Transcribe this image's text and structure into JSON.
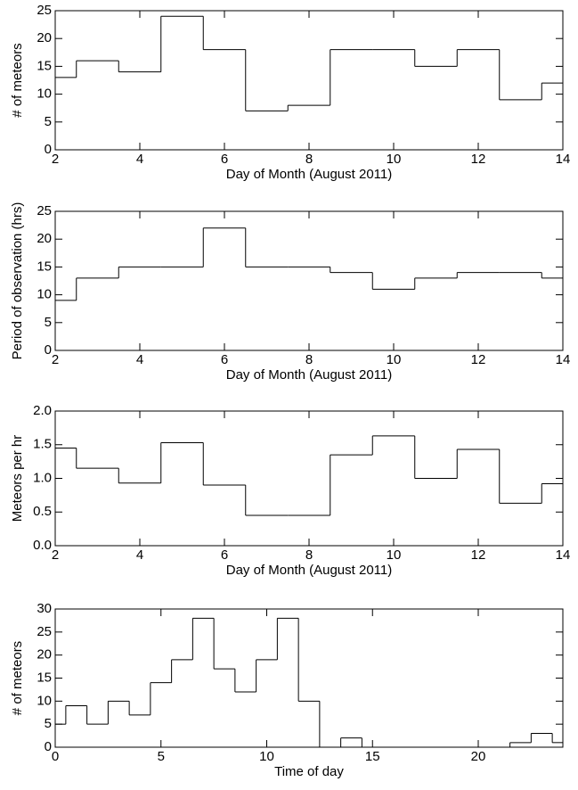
{
  "chart_data": [
    {
      "type": "step",
      "xlabel": "Day of Month (August 2011)",
      "ylabel": "# of meteors",
      "x": [
        2,
        3,
        4,
        5,
        6,
        7,
        8,
        9,
        10,
        11,
        12,
        13,
        14
      ],
      "values": [
        13,
        16,
        14,
        24,
        18,
        7,
        8,
        18,
        18,
        15,
        18,
        9,
        12
      ],
      "xlim": [
        2,
        14
      ],
      "ylim": [
        0,
        25
      ],
      "xticks": [
        2,
        4,
        6,
        8,
        10,
        12,
        14
      ],
      "yticks": [
        0,
        5,
        10,
        15,
        20,
        25
      ],
      "color": "#000000"
    },
    {
      "type": "step",
      "xlabel": "Day of Month (August 2011)",
      "ylabel": "Period of observation (hrs)",
      "x": [
        2,
        3,
        4,
        5,
        6,
        7,
        8,
        9,
        10,
        11,
        12,
        13,
        14
      ],
      "values": [
        9,
        13,
        15,
        15,
        22,
        15,
        15,
        14,
        11,
        13,
        14,
        14,
        13
      ],
      "xlim": [
        2,
        14
      ],
      "ylim": [
        0,
        25
      ],
      "xticks": [
        2,
        4,
        6,
        8,
        10,
        12,
        14
      ],
      "yticks": [
        0,
        5,
        10,
        15,
        20,
        25
      ],
      "color": "#000000"
    },
    {
      "type": "step",
      "xlabel": "Day of Month (August 2011)",
      "ylabel": "Meteors per hr",
      "x": [
        2,
        3,
        4,
        5,
        6,
        7,
        8,
        9,
        10,
        11,
        12,
        13,
        14
      ],
      "values": [
        1.45,
        1.15,
        0.93,
        1.53,
        0.9,
        0.45,
        0.45,
        1.35,
        1.63,
        1.0,
        1.43,
        0.63,
        0.92
      ],
      "xlim": [
        2,
        14
      ],
      "ylim": [
        0,
        2
      ],
      "xticks": [
        2,
        4,
        6,
        8,
        10,
        12,
        14
      ],
      "yticks": [
        {
          "value": 0,
          "label": "0.0"
        },
        0.5,
        {
          "value": 1,
          "label": "1.0"
        },
        1.5,
        {
          "value": 2,
          "label": "2.0"
        }
      ],
      "color": "#000000"
    },
    {
      "type": "step",
      "xlabel": "Time of day",
      "ylabel": "# of meteors",
      "x": [
        0,
        1,
        2,
        3,
        4,
        5,
        6,
        7,
        8,
        9,
        10,
        11,
        12,
        13,
        14,
        15,
        16,
        17,
        18,
        19,
        20,
        21,
        22,
        23,
        24
      ],
      "values": [
        5,
        9,
        5,
        10,
        7,
        14,
        19,
        28,
        17,
        12,
        19,
        28,
        10,
        0,
        2,
        0,
        0,
        0,
        0,
        0,
        0,
        0,
        1,
        3,
        1
      ],
      "xlim": [
        0,
        24
      ],
      "ylim": [
        0,
        30
      ],
      "xticks": [
        0,
        5,
        10,
        15,
        20
      ],
      "yticks": [
        0,
        5,
        10,
        15,
        20,
        25,
        30
      ],
      "color": "#000000"
    }
  ]
}
